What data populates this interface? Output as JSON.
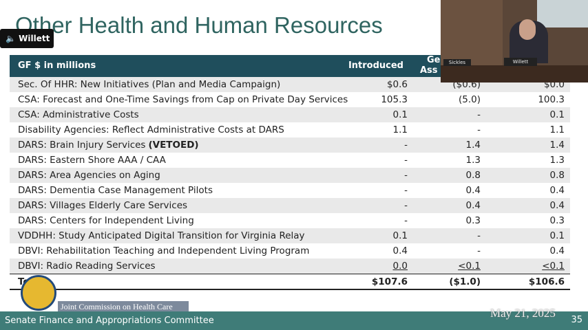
{
  "title": "Other Health and Human Resources",
  "speaker_badge": "Willett",
  "table": {
    "header": {
      "label": "GF $ in millions",
      "introduced": "Introduced",
      "col3": [
        "Ge",
        "Ass"
      ]
    },
    "rows": [
      {
        "label": "Sec. Of HHR: New Initiatives (Plan and Media Campaign)",
        "introduced": "$0.6",
        "col3": "($0.6)",
        "col4": "$0.0"
      },
      {
        "label": "CSA: Forecast and One-Time Savings from Cap on Private Day Services",
        "introduced": "105.3",
        "col3": "(5.0)",
        "col4": "100.3"
      },
      {
        "label": "CSA: Administrative Costs",
        "introduced": "0.1",
        "col3": "-",
        "col4": "0.1"
      },
      {
        "label": "Disability Agencies: Reflect Administrative Costs at DARS",
        "introduced": "1.1",
        "col3": "-",
        "col4": "1.1"
      },
      {
        "label": "DARS: Brain Injury Services",
        "note": "(VETOED)",
        "introduced": "-",
        "col3": "1.4",
        "col4": "1.4"
      },
      {
        "label": "DARS: Eastern Shore AAA / CAA",
        "introduced": "-",
        "col3": "1.3",
        "col4": "1.3"
      },
      {
        "label": "DARS: Area Agencies on Aging",
        "introduced": "-",
        "col3": "0.8",
        "col4": "0.8"
      },
      {
        "label": "DARS: Dementia Case Management Pilots",
        "introduced": "-",
        "col3": "0.4",
        "col4": "0.4"
      },
      {
        "label": "DARS: Villages Elderly Care Services",
        "introduced": "-",
        "col3": "0.4",
        "col4": "0.4"
      },
      {
        "label": "DARS: Centers for Independent Living",
        "introduced": "-",
        "col3": "0.3",
        "col4": "0.3"
      },
      {
        "label": "VDDHH: Study Anticipated Digital Transition for Virginia Relay",
        "introduced": "0.1",
        "col3": "-",
        "col4": "0.1"
      },
      {
        "label": "DBVI: Rehabilitation Teaching and Independent Living Program",
        "introduced": "0.4",
        "col3": "-",
        "col4": "0.4"
      },
      {
        "label": "DBVI: Radio Reading Services",
        "introduced": "0.0",
        "col3": "<0.1",
        "col4": "<0.1"
      }
    ],
    "total": {
      "label": "To",
      "introduced": "$107.6",
      "col3": "($1.0)",
      "col4": "$106.6"
    }
  },
  "logo_text": "Joint Commission on Health Care",
  "video": {
    "nameplates": [
      "Sickles",
      "Willett"
    ]
  },
  "footer": {
    "committee": "Senate Finance and Appropriations Committee",
    "date": "May 21, 2025",
    "page": "35"
  }
}
